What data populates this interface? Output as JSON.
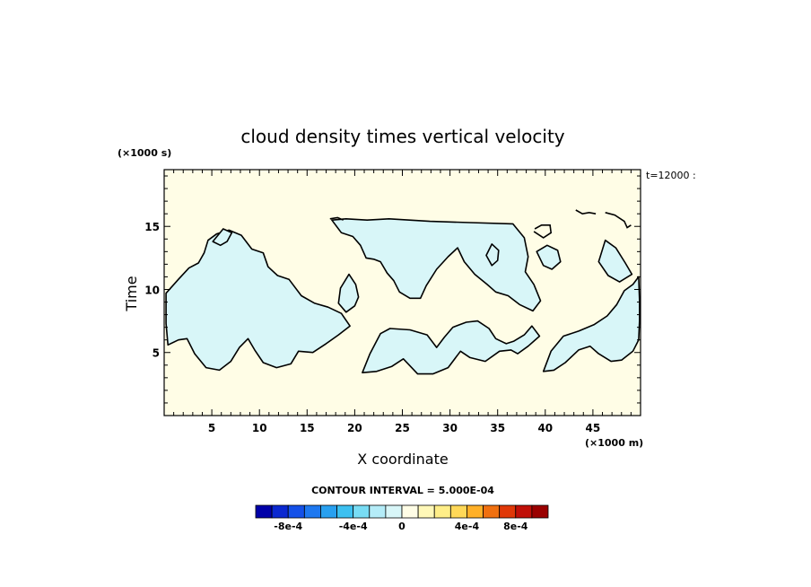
{
  "chart_data": {
    "type": "heatmap",
    "title": "cloud density times vertical velocity",
    "xlabel": "X coordinate",
    "ylabel": "Time",
    "x_scale_note": "(×1000 m)",
    "y_scale_note": "(×1000 s)",
    "time_label": "t=12000 :",
    "xlim": [
      0,
      50
    ],
    "ylim": [
      0,
      19.5
    ],
    "x_ticks": [
      5,
      10,
      15,
      20,
      25,
      30,
      35,
      40,
      45
    ],
    "y_ticks": [
      5,
      10,
      15
    ],
    "contour_interval_text": "CONTOUR INTERVAL = 5.000E-04",
    "background_color": "#fffde6",
    "region_color": "#d8f6f8",
    "regions": [
      {
        "name": "left-lower",
        "points": [
          [
            0.2,
            9.7
          ],
          [
            1.5,
            10.8
          ],
          [
            2.6,
            11.7
          ],
          [
            3.6,
            12.1
          ],
          [
            4.2,
            12.9
          ],
          [
            4.6,
            13.9
          ],
          [
            5.5,
            14.4
          ],
          [
            6.8,
            14.7
          ],
          [
            8.1,
            14.3
          ],
          [
            9.2,
            13.2
          ],
          [
            10.4,
            12.9
          ],
          [
            10.9,
            11.8
          ],
          [
            11.9,
            11.1
          ],
          [
            13.1,
            10.8
          ],
          [
            14.4,
            9.5
          ],
          [
            15.8,
            8.9
          ],
          [
            17.2,
            8.6
          ],
          [
            18.6,
            8.1
          ],
          [
            19.5,
            7.1
          ],
          [
            18.3,
            6.4
          ],
          [
            17.0,
            5.7
          ],
          [
            15.6,
            5.0
          ],
          [
            14.1,
            5.1
          ],
          [
            13.3,
            4.1
          ],
          [
            11.8,
            3.8
          ],
          [
            10.4,
            4.2
          ],
          [
            9.5,
            5.2
          ],
          [
            8.8,
            6.1
          ],
          [
            7.9,
            5.4
          ],
          [
            7.0,
            4.3
          ],
          [
            5.8,
            3.6
          ],
          [
            4.4,
            3.8
          ],
          [
            3.2,
            4.9
          ],
          [
            2.4,
            6.1
          ],
          [
            1.5,
            6.0
          ],
          [
            0.4,
            5.6
          ],
          [
            0.2,
            7.3
          ]
        ]
      },
      {
        "name": "center-top",
        "points": [
          [
            17.6,
            15.5
          ],
          [
            19.1,
            15.6
          ],
          [
            21.3,
            15.5
          ],
          [
            23.6,
            15.6
          ],
          [
            27.9,
            15.4
          ],
          [
            32.1,
            15.3
          ],
          [
            36.6,
            15.2
          ],
          [
            37.8,
            14.1
          ],
          [
            38.2,
            12.6
          ],
          [
            37.9,
            11.4
          ],
          [
            38.8,
            10.4
          ],
          [
            39.5,
            9.1
          ],
          [
            38.7,
            8.3
          ],
          [
            37.3,
            8.8
          ],
          [
            36.1,
            9.5
          ],
          [
            34.8,
            9.8
          ],
          [
            33.9,
            10.4
          ],
          [
            32.6,
            11.2
          ],
          [
            31.5,
            12.2
          ],
          [
            30.8,
            13.3
          ],
          [
            29.8,
            12.6
          ],
          [
            28.6,
            11.6
          ],
          [
            27.5,
            10.3
          ],
          [
            26.9,
            9.3
          ],
          [
            25.8,
            9.3
          ],
          [
            24.7,
            9.8
          ],
          [
            24.1,
            10.7
          ],
          [
            23.4,
            11.3
          ],
          [
            22.7,
            12.2
          ],
          [
            22.0,
            12.4
          ],
          [
            21.2,
            12.5
          ],
          [
            20.6,
            13.5
          ],
          [
            19.8,
            14.2
          ],
          [
            18.6,
            14.5
          ]
        ]
      },
      {
        "name": "center-lower",
        "points": [
          [
            20.8,
            3.4
          ],
          [
            21.6,
            4.9
          ],
          [
            22.7,
            6.5
          ],
          [
            23.7,
            6.9
          ],
          [
            25.8,
            6.8
          ],
          [
            27.6,
            6.4
          ],
          [
            28.6,
            5.4
          ],
          [
            29.4,
            6.2
          ],
          [
            30.3,
            7.0
          ],
          [
            31.7,
            7.4
          ],
          [
            32.9,
            7.5
          ],
          [
            34.1,
            6.9
          ],
          [
            34.8,
            6.1
          ],
          [
            35.9,
            5.7
          ],
          [
            36.7,
            5.9
          ],
          [
            37.8,
            6.4
          ],
          [
            38.6,
            7.1
          ],
          [
            39.4,
            6.3
          ],
          [
            38.2,
            5.5
          ],
          [
            37.1,
            4.9
          ],
          [
            36.4,
            5.2
          ],
          [
            35.2,
            5.1
          ],
          [
            33.7,
            4.3
          ],
          [
            32.1,
            4.6
          ],
          [
            31.1,
            5.1
          ],
          [
            29.8,
            3.8
          ],
          [
            28.2,
            3.3
          ],
          [
            26.6,
            3.3
          ],
          [
            25.1,
            4.5
          ],
          [
            23.9,
            3.9
          ],
          [
            22.3,
            3.5
          ]
        ]
      },
      {
        "name": "right-region",
        "points": [
          [
            39.8,
            3.5
          ],
          [
            40.6,
            5.1
          ],
          [
            41.9,
            6.3
          ],
          [
            43.5,
            6.7
          ],
          [
            45.1,
            7.2
          ],
          [
            46.5,
            7.9
          ],
          [
            47.5,
            8.8
          ],
          [
            48.3,
            9.9
          ],
          [
            49.2,
            10.4
          ],
          [
            49.8,
            11.0
          ],
          [
            49.9,
            9.0
          ],
          [
            49.9,
            7.6
          ],
          [
            49.8,
            6.0
          ],
          [
            49.2,
            5.1
          ],
          [
            48.0,
            4.4
          ],
          [
            46.9,
            4.3
          ],
          [
            45.6,
            4.9
          ],
          [
            44.7,
            5.5
          ],
          [
            43.5,
            5.2
          ],
          [
            42.1,
            4.2
          ],
          [
            40.9,
            3.6
          ]
        ]
      },
      {
        "name": "right-upper",
        "points": [
          [
            45.6,
            12.2
          ],
          [
            46.3,
            13.9
          ],
          [
            47.4,
            13.3
          ],
          [
            48.4,
            12.1
          ],
          [
            49.1,
            11.2
          ],
          [
            47.8,
            10.6
          ],
          [
            46.6,
            11.1
          ]
        ]
      },
      {
        "name": "middle-band",
        "points": [
          [
            19.4,
            11.2
          ],
          [
            20.1,
            10.4
          ],
          [
            20.4,
            9.4
          ],
          [
            20.0,
            8.7
          ],
          [
            19.1,
            8.2
          ],
          [
            18.3,
            8.9
          ],
          [
            18.5,
            10.1
          ]
        ]
      },
      {
        "name": "cell-a",
        "points": [
          [
            33.8,
            12.7
          ],
          [
            34.4,
            13.6
          ],
          [
            35.1,
            13.1
          ],
          [
            35.0,
            12.3
          ],
          [
            34.4,
            11.9
          ]
        ]
      },
      {
        "name": "cell-b",
        "points": [
          [
            39.1,
            13.0
          ],
          [
            40.2,
            13.5
          ],
          [
            41.3,
            13.1
          ],
          [
            41.6,
            12.2
          ],
          [
            40.7,
            11.6
          ],
          [
            39.8,
            11.9
          ]
        ]
      },
      {
        "name": "cell-c",
        "points": [
          [
            5.1,
            13.8
          ],
          [
            6.2,
            14.8
          ],
          [
            7.1,
            14.5
          ],
          [
            6.6,
            13.8
          ],
          [
            5.9,
            13.5
          ]
        ]
      }
    ],
    "lines": [
      {
        "name": "top-right-contour-1",
        "points": [
          [
            43.2,
            16.3
          ],
          [
            43.9,
            16.0
          ],
          [
            44.6,
            16.1
          ],
          [
            45.3,
            16.0
          ]
        ]
      },
      {
        "name": "top-right-contour-2",
        "points": [
          [
            46.3,
            16.1
          ],
          [
            47.3,
            15.9
          ],
          [
            48.3,
            15.4
          ],
          [
            48.6,
            14.9
          ],
          [
            49.0,
            15.1
          ]
        ]
      },
      {
        "name": "top-left-contour",
        "points": [
          [
            17.4,
            15.6
          ],
          [
            18.2,
            15.7
          ],
          [
            18.8,
            15.5
          ]
        ]
      },
      {
        "name": "upper-cell-contour",
        "points": [
          [
            38.8,
            14.6
          ],
          [
            39.8,
            14.1
          ],
          [
            40.6,
            14.5
          ],
          [
            40.5,
            15.1
          ],
          [
            39.6,
            15.1
          ],
          [
            38.9,
            14.8
          ]
        ]
      }
    ],
    "legend_colors": [
      "#0000a8",
      "#0a28d0",
      "#1450e8",
      "#1e78f0",
      "#28a0f0",
      "#3cc0f0",
      "#78dcf4",
      "#b4ecf8",
      "#d8f6f8",
      "#fffde6",
      "#fff8b8",
      "#ffee88",
      "#ffd858",
      "#ffb028",
      "#f07010",
      "#e03808",
      "#c01008",
      "#9a0000"
    ],
    "legend_labels": [
      "-8e-4",
      "-4e-4",
      "0",
      "4e-4",
      "8e-4"
    ]
  }
}
